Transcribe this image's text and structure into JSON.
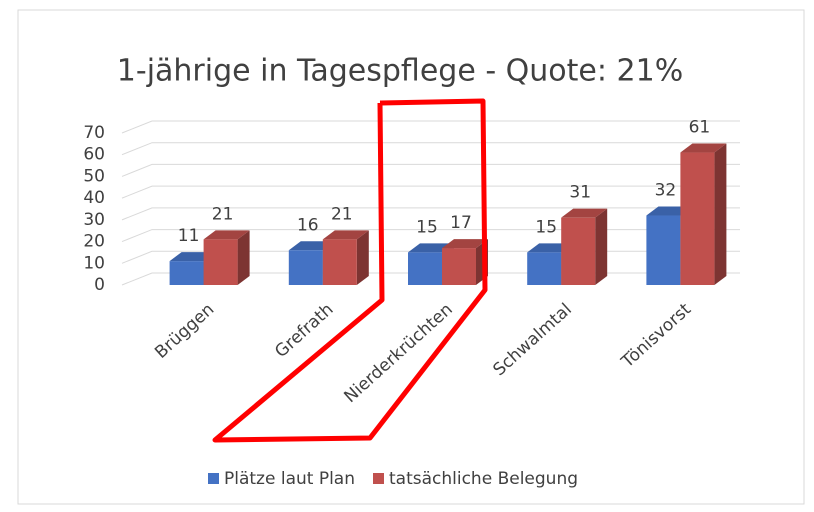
{
  "chart_data": {
    "type": "bar3d",
    "title": "1-jährige in Tagespflege - Quote: 21%",
    "categories": [
      "Brüggen",
      "Grefrath",
      "Nierderkrüchten",
      "Schwalmtal",
      "Tönisvorst"
    ],
    "series": [
      {
        "name": "Plätze laut Plan",
        "color": "#4472c4",
        "values": [
          11,
          16,
          15,
          15,
          32
        ]
      },
      {
        "name": "tatsächliche Belegung",
        "color": "#c0504d",
        "values": [
          21,
          21,
          17,
          31,
          61
        ]
      }
    ],
    "ylim": [
      0,
      70
    ],
    "yticks": [
      0,
      10,
      20,
      30,
      40,
      50,
      60,
      70
    ],
    "grid": true,
    "legend": "bottom"
  }
}
